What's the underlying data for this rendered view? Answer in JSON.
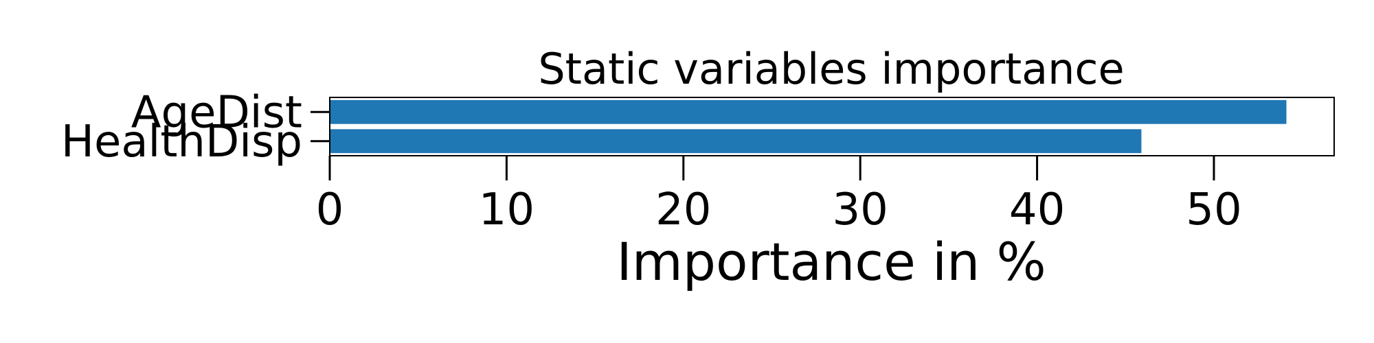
{
  "chart_data": {
    "type": "bar",
    "orientation": "horizontal",
    "title": "Static variables importance",
    "xlabel": "Importance in %",
    "ylabel": "",
    "categories": [
      "AgeDist",
      "HealthDisp"
    ],
    "values": [
      54.1,
      45.9
    ],
    "xlim": [
      0,
      56.8
    ],
    "xticks": [
      0,
      10,
      20,
      30,
      40,
      50
    ],
    "grid": false,
    "legend": "none",
    "bar_color": "#1f77b4"
  }
}
